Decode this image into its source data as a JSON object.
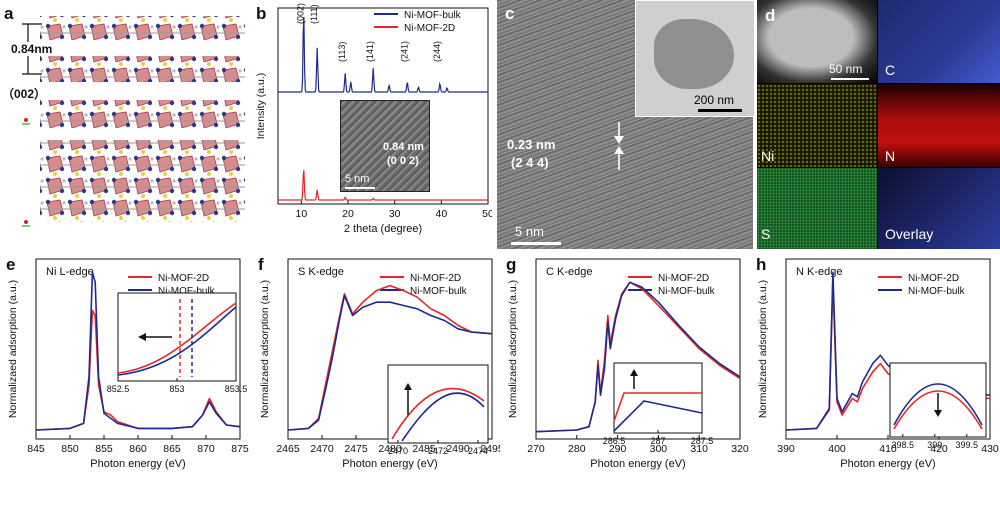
{
  "panels": {
    "a": {
      "label": "a",
      "spacing": "0.84nm",
      "plane": "（002）"
    },
    "b": {
      "label": "b"
    },
    "c": {
      "label": "c",
      "lattice": "0.23 nm",
      "plane": "(2 4 4)",
      "scale_main": "5 nm",
      "scale_inset": "200 nm"
    },
    "d": {
      "label": "d",
      "scale": "50 nm",
      "tiles": [
        "C",
        "Ni",
        "N",
        "S",
        "Overlay"
      ]
    },
    "e": {
      "label": "e"
    },
    "f": {
      "label": "f"
    },
    "g": {
      "label": "g"
    },
    "h": {
      "label": "h"
    }
  },
  "colors": {
    "red": "#e3262b",
    "blue": "#1f2b8c"
  },
  "chart_data": [
    {
      "id": "b",
      "type": "line",
      "xlabel": "2 theta (degree)",
      "ylabel": "Intensity (a.u.)",
      "xlim": [
        5,
        50
      ],
      "xticks": [
        10,
        20,
        30,
        40,
        50
      ],
      "legend": [
        "Ni-MOF-bulk",
        "Ni-MOF-2D"
      ],
      "legend_position": "top-right",
      "peak_labels": [
        "(002)",
        "(111)",
        "(113)",
        "(141)",
        "(241)",
        "(244)"
      ],
      "peak_x": [
        10.5,
        13.4,
        19.4,
        25.4,
        32.7,
        39.7
      ],
      "inset": {
        "d_spacing": "0.84 nm",
        "plane": "(0 0 2)",
        "scale": "5 nm"
      },
      "series": [
        {
          "name": "Ni-MOF-bulk",
          "peaks": [
            [
              10.5,
              95
            ],
            [
              13.4,
              52
            ],
            [
              19.4,
              22
            ],
            [
              20.6,
              12
            ],
            [
              25.4,
              28
            ],
            [
              28.8,
              8
            ],
            [
              32.7,
              12
            ],
            [
              35.1,
              6
            ],
            [
              39.7,
              10
            ],
            [
              41.2,
              5
            ]
          ]
        },
        {
          "name": "Ni-MOF-2D",
          "peaks": [
            [
              10.5,
              38
            ],
            [
              13.4,
              12
            ],
            [
              19.4,
              3
            ],
            [
              25.4,
              2
            ]
          ]
        }
      ]
    },
    {
      "id": "e",
      "type": "line",
      "title": "Ni L-edge",
      "xlabel": "Photon energy (eV)",
      "ylabel": "Normalizaed adsorption (a.u.)",
      "xlim": [
        845,
        875
      ],
      "xticks": [
        845,
        850,
        855,
        860,
        865,
        870,
        875
      ],
      "legend": [
        "Ni-MOF-2D",
        "Ni-MOF-bulk"
      ],
      "inset": {
        "xlim": [
          852.5,
          853.5
        ],
        "xticks": [
          852.5,
          853.0,
          853.5
        ]
      },
      "series": [
        {
          "name": "Ni-MOF-2D",
          "points": [
            [
              845,
              0.03
            ],
            [
              850,
              0.04
            ],
            [
              852,
              0.07
            ],
            [
              852.8,
              0.3
            ],
            [
              853.3,
              0.75
            ],
            [
              853.7,
              0.72
            ],
            [
              854.2,
              0.3
            ],
            [
              855,
              0.14
            ],
            [
              856,
              0.12
            ],
            [
              857,
              0.08
            ],
            [
              860,
              0.04
            ],
            [
              865,
              0.04
            ],
            [
              868,
              0.05
            ],
            [
              869.5,
              0.12
            ],
            [
              870.5,
              0.22
            ],
            [
              871.5,
              0.14
            ],
            [
              873,
              0.06
            ],
            [
              875,
              0.05
            ]
          ]
        },
        {
          "name": "Ni-MOF-bulk",
          "points": [
            [
              845,
              0.03
            ],
            [
              850,
              0.04
            ],
            [
              852,
              0.07
            ],
            [
              852.8,
              0.35
            ],
            [
              853.3,
              0.98
            ],
            [
              853.7,
              0.92
            ],
            [
              854.2,
              0.35
            ],
            [
              855,
              0.13
            ],
            [
              856,
              0.1
            ],
            [
              857,
              0.07
            ],
            [
              860,
              0.04
            ],
            [
              865,
              0.04
            ],
            [
              868,
              0.05
            ],
            [
              869.5,
              0.12
            ],
            [
              870.5,
              0.2
            ],
            [
              871.5,
              0.13
            ],
            [
              873,
              0.06
            ],
            [
              875,
              0.05
            ]
          ]
        }
      ]
    },
    {
      "id": "f",
      "type": "line",
      "title": "S K-edge",
      "xlabel": "Photon energy (eV)",
      "ylabel": "Normalizaed adsorption (a.u.)",
      "xlim": [
        2465,
        2495
      ],
      "xticks": [
        2465,
        2470,
        2475,
        2480,
        2485,
        2490,
        2495
      ],
      "legend": [
        "Ni-MOF-2D",
        "Ni-MOF-bulk"
      ],
      "inset": {
        "xlim": [
          2469.5,
          2474.5
        ],
        "xticks": [
          2470,
          2472,
          2474
        ]
      },
      "series": [
        {
          "name": "Ni-MOF-2D",
          "points": [
            [
              2465,
              0.03
            ],
            [
              2468,
              0.04
            ],
            [
              2469.5,
              0.1
            ],
            [
              2470.5,
              0.3
            ],
            [
              2471.5,
              0.5
            ],
            [
              2472.5,
              0.7
            ],
            [
              2473.3,
              0.85
            ],
            [
              2474.5,
              0.73
            ],
            [
              2476,
              0.8
            ],
            [
              2478,
              0.87
            ],
            [
              2480,
              0.9
            ],
            [
              2482,
              0.87
            ],
            [
              2484,
              0.83
            ],
            [
              2486,
              0.76
            ],
            [
              2488,
              0.72
            ],
            [
              2490,
              0.66
            ],
            [
              2492,
              0.62
            ],
            [
              2495,
              0.61
            ]
          ]
        },
        {
          "name": "Ni-MOF-bulk",
          "points": [
            [
              2465,
              0.03
            ],
            [
              2468,
              0.04
            ],
            [
              2469.5,
              0.09
            ],
            [
              2470.5,
              0.27
            ],
            [
              2471.5,
              0.46
            ],
            [
              2472.5,
              0.68
            ],
            [
              2473.3,
              0.84
            ],
            [
              2474.5,
              0.72
            ],
            [
              2476,
              0.77
            ],
            [
              2478,
              0.8
            ],
            [
              2480,
              0.8
            ],
            [
              2482,
              0.78
            ],
            [
              2484,
              0.76
            ],
            [
              2486,
              0.72
            ],
            [
              2488,
              0.69
            ],
            [
              2490,
              0.64
            ],
            [
              2492,
              0.62
            ],
            [
              2495,
              0.61
            ]
          ]
        }
      ]
    },
    {
      "id": "g",
      "type": "line",
      "title": "C K-edge",
      "xlabel": "Photon energy (eV)",
      "ylabel": "Normalizaed adsorption (a.u.)",
      "xlim": [
        270,
        320
      ],
      "xticks": [
        270,
        280,
        290,
        300,
        310,
        320
      ],
      "legend": [
        "Ni-MOF-2D",
        "Ni-MOF-bulk"
      ],
      "inset": {
        "xlim": [
          286.5,
          287.5
        ],
        "xticks": [
          286.5,
          287.0,
          287.5
        ]
      },
      "series": [
        {
          "name": "Ni-MOF-2D",
          "points": [
            [
              270,
              0.02
            ],
            [
              280,
              0.03
            ],
            [
              283,
              0.05
            ],
            [
              284.5,
              0.2
            ],
            [
              285.2,
              0.45
            ],
            [
              285.8,
              0.25
            ],
            [
              286.8,
              0.45
            ],
            [
              287.6,
              0.72
            ],
            [
              288.2,
              0.55
            ],
            [
              289.5,
              0.72
            ],
            [
              291,
              0.85
            ],
            [
              293,
              0.92
            ],
            [
              296,
              0.88
            ],
            [
              300,
              0.78
            ],
            [
              305,
              0.65
            ],
            [
              310,
              0.52
            ],
            [
              315,
              0.42
            ],
            [
              320,
              0.34
            ]
          ]
        },
        {
          "name": "Ni-MOF-bulk",
          "points": [
            [
              270,
              0.02
            ],
            [
              280,
              0.03
            ],
            [
              283,
              0.05
            ],
            [
              284.5,
              0.2
            ],
            [
              285.2,
              0.42
            ],
            [
              285.8,
              0.24
            ],
            [
              286.8,
              0.4
            ],
            [
              287.6,
              0.68
            ],
            [
              288.2,
              0.52
            ],
            [
              289.5,
              0.7
            ],
            [
              291,
              0.84
            ],
            [
              293,
              0.92
            ],
            [
              296,
              0.89
            ],
            [
              300,
              0.8
            ],
            [
              305,
              0.66
            ],
            [
              310,
              0.53
            ],
            [
              315,
              0.43
            ],
            [
              320,
              0.35
            ]
          ]
        }
      ]
    },
    {
      "id": "h",
      "type": "line",
      "title": "N K-edge",
      "xlabel": "Photon energy (eV)",
      "ylabel": "Normalizaed adsorption (a.u.)",
      "xlim": [
        390,
        430
      ],
      "xticks": [
        390,
        400,
        410,
        420,
        430
      ],
      "legend": [
        "Ni-MOF-2D",
        "Ni-MOF-bulk"
      ],
      "inset": {
        "xlim": [
          398.3,
          399.8
        ],
        "xticks": [
          398.5,
          399.0,
          399.5
        ]
      },
      "series": [
        {
          "name": "Ni-MOF-2D",
          "points": [
            [
              390,
              0.03
            ],
            [
              396,
              0.04
            ],
            [
              398.5,
              0.15
            ],
            [
              399.2,
              0.92
            ],
            [
              400,
              0.2
            ],
            [
              401,
              0.12
            ],
            [
              403,
              0.22
            ],
            [
              404,
              0.2
            ],
            [
              405,
              0.28
            ],
            [
              407,
              0.38
            ],
            [
              408.5,
              0.43
            ],
            [
              410,
              0.37
            ],
            [
              412,
              0.33
            ],
            [
              415,
              0.3
            ],
            [
              420,
              0.26
            ],
            [
              425,
              0.23
            ],
            [
              430,
              0.22
            ]
          ]
        },
        {
          "name": "Ni-MOF-bulk",
          "points": [
            [
              390,
              0.03
            ],
            [
              396,
              0.04
            ],
            [
              398.5,
              0.16
            ],
            [
              399.2,
              0.98
            ],
            [
              400,
              0.22
            ],
            [
              401,
              0.14
            ],
            [
              403,
              0.25
            ],
            [
              404,
              0.23
            ],
            [
              405,
              0.32
            ],
            [
              407,
              0.43
            ],
            [
              408.5,
              0.48
            ],
            [
              410,
              0.42
            ],
            [
              412,
              0.37
            ],
            [
              415,
              0.34
            ],
            [
              420,
              0.29
            ],
            [
              425,
              0.25
            ],
            [
              430,
              0.24
            ]
          ]
        }
      ]
    }
  ]
}
